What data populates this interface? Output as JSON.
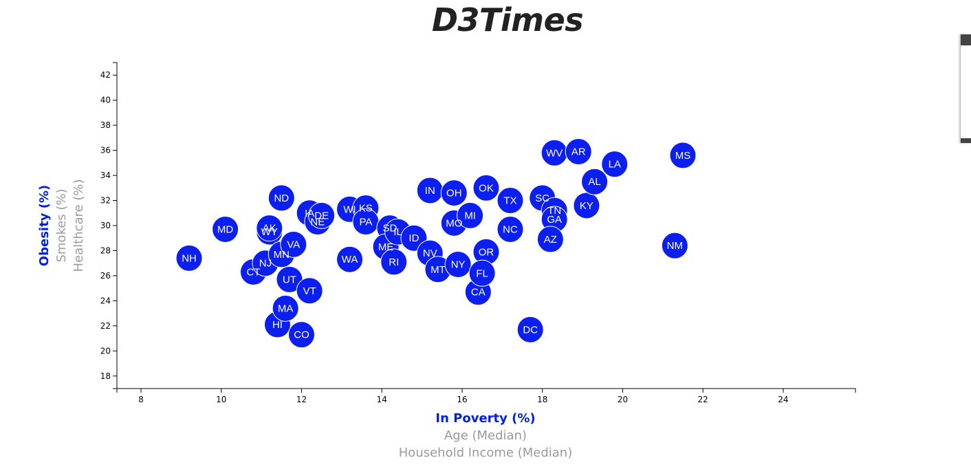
{
  "page_title": "D3Times",
  "chart_data": {
    "type": "scatter",
    "title": "D3Times",
    "x_labels": [
      "In Poverty (%)",
      "Age (Median)",
      "Household Income (Median)"
    ],
    "y_labels": [
      "Obesity (%)",
      "Smokes (%)",
      "Healthcare (%)"
    ],
    "active_x": "In Poverty (%)",
    "active_y": "Obesity (%)",
    "xlim": [
      7.4,
      25.8
    ],
    "ylim": [
      17,
      43
    ],
    "x_ticks": [
      8,
      10,
      12,
      14,
      16,
      18,
      20,
      22,
      24
    ],
    "y_ticks": [
      18,
      20,
      22,
      24,
      26,
      28,
      30,
      32,
      34,
      36,
      38,
      40,
      42
    ],
    "grid": false,
    "point_color": "#0a1ff0",
    "active_label_color": "#0022dd",
    "inactive_label_color": "#9a9a9a",
    "points": [
      {
        "abbr": "NH",
        "x": 9.2,
        "y": 27.4
      },
      {
        "abbr": "MD",
        "x": 10.1,
        "y": 29.7
      },
      {
        "abbr": "CT",
        "x": 10.8,
        "y": 26.3
      },
      {
        "abbr": "NJ",
        "x": 11.1,
        "y": 27.0
      },
      {
        "abbr": "WY",
        "x": 11.2,
        "y": 29.5
      },
      {
        "abbr": "AK",
        "x": 11.2,
        "y": 29.8
      },
      {
        "abbr": "ND",
        "x": 11.5,
        "y": 32.2
      },
      {
        "abbr": "HI",
        "x": 11.4,
        "y": 22.1
      },
      {
        "abbr": "MA",
        "x": 11.6,
        "y": 23.4
      },
      {
        "abbr": "MN",
        "x": 11.5,
        "y": 27.7
      },
      {
        "abbr": "UT",
        "x": 11.7,
        "y": 25.7
      },
      {
        "abbr": "VA",
        "x": 11.8,
        "y": 28.5
      },
      {
        "abbr": "CO",
        "x": 12.0,
        "y": 21.3
      },
      {
        "abbr": "VT",
        "x": 12.2,
        "y": 24.8
      },
      {
        "abbr": "IA",
        "x": 12.2,
        "y": 31.0
      },
      {
        "abbr": "NE",
        "x": 12.4,
        "y": 30.3
      },
      {
        "abbr": "DE",
        "x": 12.5,
        "y": 30.8
      },
      {
        "abbr": "WI",
        "x": 13.2,
        "y": 31.3
      },
      {
        "abbr": "WA",
        "x": 13.2,
        "y": 27.3
      },
      {
        "abbr": "KS",
        "x": 13.6,
        "y": 31.4
      },
      {
        "abbr": "PA",
        "x": 13.6,
        "y": 30.3
      },
      {
        "abbr": "SD",
        "x": 14.2,
        "y": 29.8
      },
      {
        "abbr": "ME",
        "x": 14.1,
        "y": 28.3
      },
      {
        "abbr": "IL",
        "x": 14.4,
        "y": 29.5
      },
      {
        "abbr": "RI",
        "x": 14.3,
        "y": 27.1
      },
      {
        "abbr": "ID",
        "x": 14.8,
        "y": 29.0
      },
      {
        "abbr": "IN",
        "x": 15.2,
        "y": 32.8
      },
      {
        "abbr": "NV",
        "x": 15.2,
        "y": 27.8
      },
      {
        "abbr": "MT",
        "x": 15.4,
        "y": 26.5
      },
      {
        "abbr": "OH",
        "x": 15.8,
        "y": 32.6
      },
      {
        "abbr": "MO",
        "x": 15.8,
        "y": 30.2
      },
      {
        "abbr": "NY",
        "x": 15.9,
        "y": 26.9
      },
      {
        "abbr": "MI",
        "x": 16.2,
        "y": 30.8
      },
      {
        "abbr": "CA",
        "x": 16.4,
        "y": 24.7
      },
      {
        "abbr": "OK",
        "x": 16.6,
        "y": 33.0
      },
      {
        "abbr": "OR",
        "x": 16.6,
        "y": 27.9
      },
      {
        "abbr": "FL",
        "x": 16.5,
        "y": 26.2
      },
      {
        "abbr": "TX",
        "x": 17.2,
        "y": 32.0
      },
      {
        "abbr": "NC",
        "x": 17.2,
        "y": 29.7
      },
      {
        "abbr": "DC",
        "x": 17.7,
        "y": 21.7
      },
      {
        "abbr": "SC",
        "x": 18.0,
        "y": 32.2
      },
      {
        "abbr": "TN",
        "x": 18.3,
        "y": 31.2
      },
      {
        "abbr": "GA",
        "x": 18.3,
        "y": 30.5
      },
      {
        "abbr": "AZ",
        "x": 18.2,
        "y": 28.9
      },
      {
        "abbr": "WV",
        "x": 18.3,
        "y": 35.8
      },
      {
        "abbr": "AR",
        "x": 18.9,
        "y": 35.9
      },
      {
        "abbr": "KY",
        "x": 19.1,
        "y": 31.6
      },
      {
        "abbr": "AL",
        "x": 19.3,
        "y": 33.5
      },
      {
        "abbr": "LA",
        "x": 19.8,
        "y": 34.9
      },
      {
        "abbr": "NM",
        "x": 21.3,
        "y": 28.4
      },
      {
        "abbr": "MS",
        "x": 21.5,
        "y": 35.6
      }
    ]
  }
}
